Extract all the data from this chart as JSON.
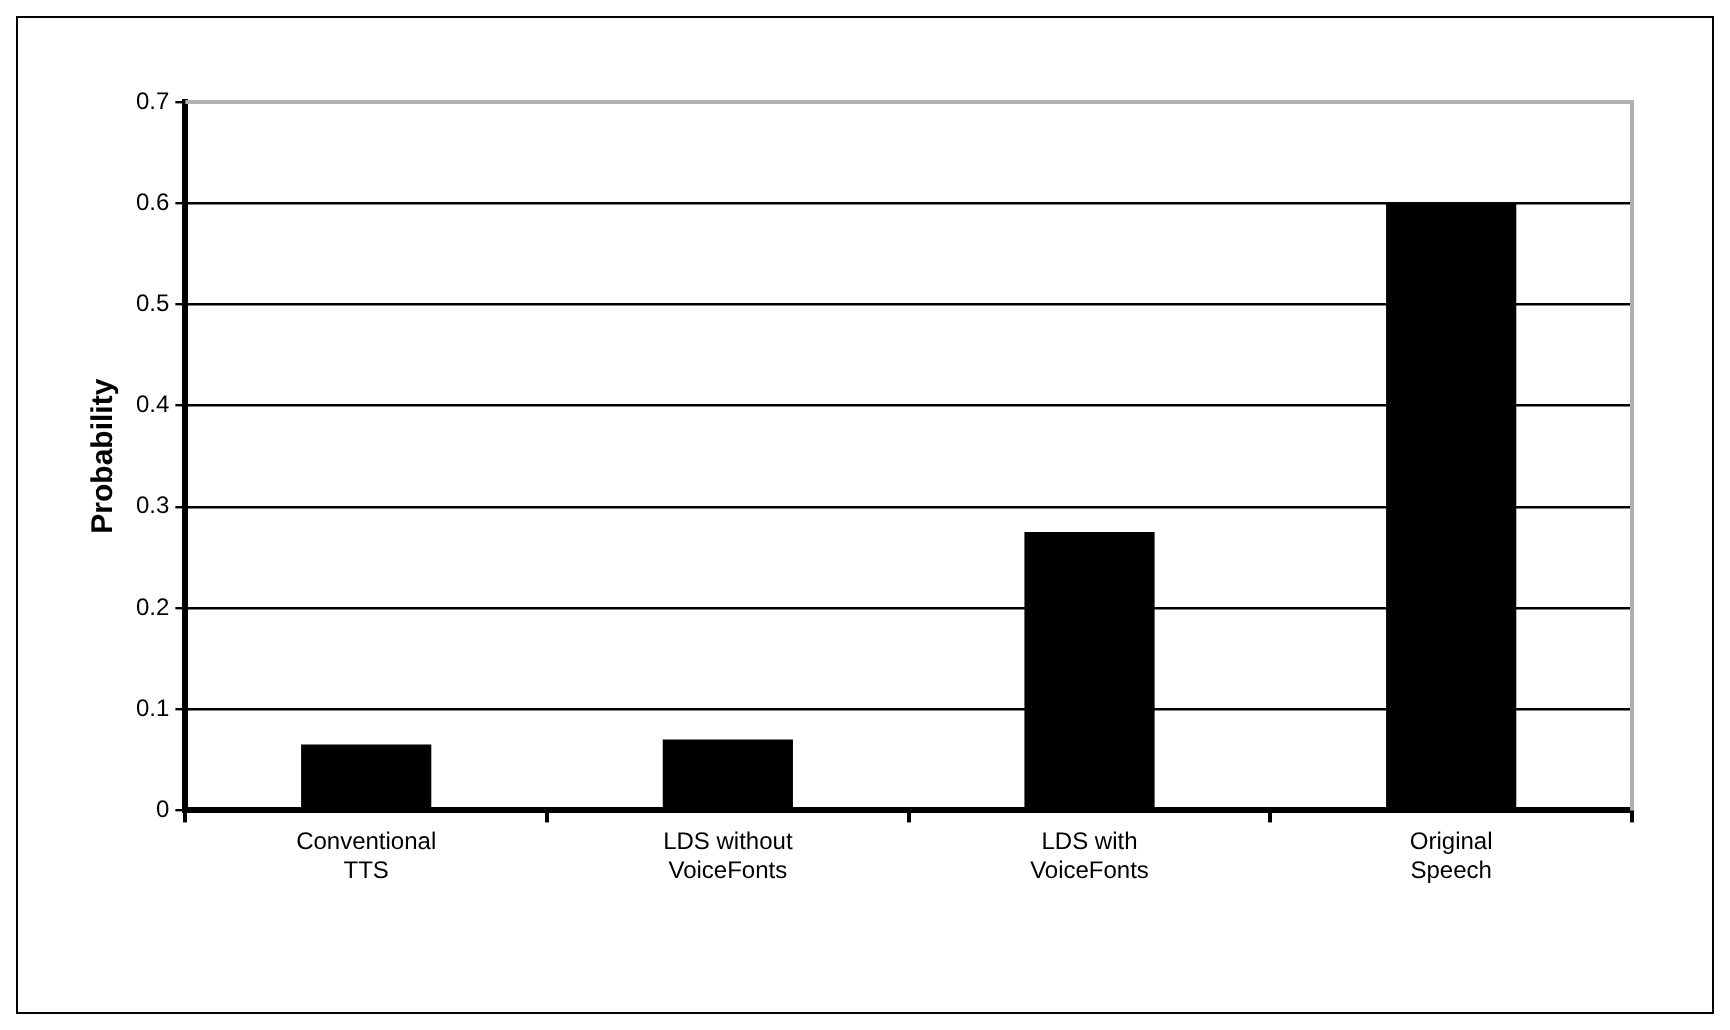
{
  "chart_data": {
    "type": "bar",
    "ylabel": "Probability",
    "categories": [
      "Conventional TTS",
      "LDS without VoiceFonts",
      "LDS with VoiceFonts",
      "Original Speech"
    ],
    "values": [
      0.065,
      0.07,
      0.275,
      0.6
    ],
    "color": "#000000",
    "ylim": [
      0,
      0.7
    ],
    "yticks": [
      0,
      0.1,
      0.2,
      0.3,
      0.4,
      0.5,
      0.6,
      0.7
    ],
    "grid": "y",
    "legend": false
  }
}
